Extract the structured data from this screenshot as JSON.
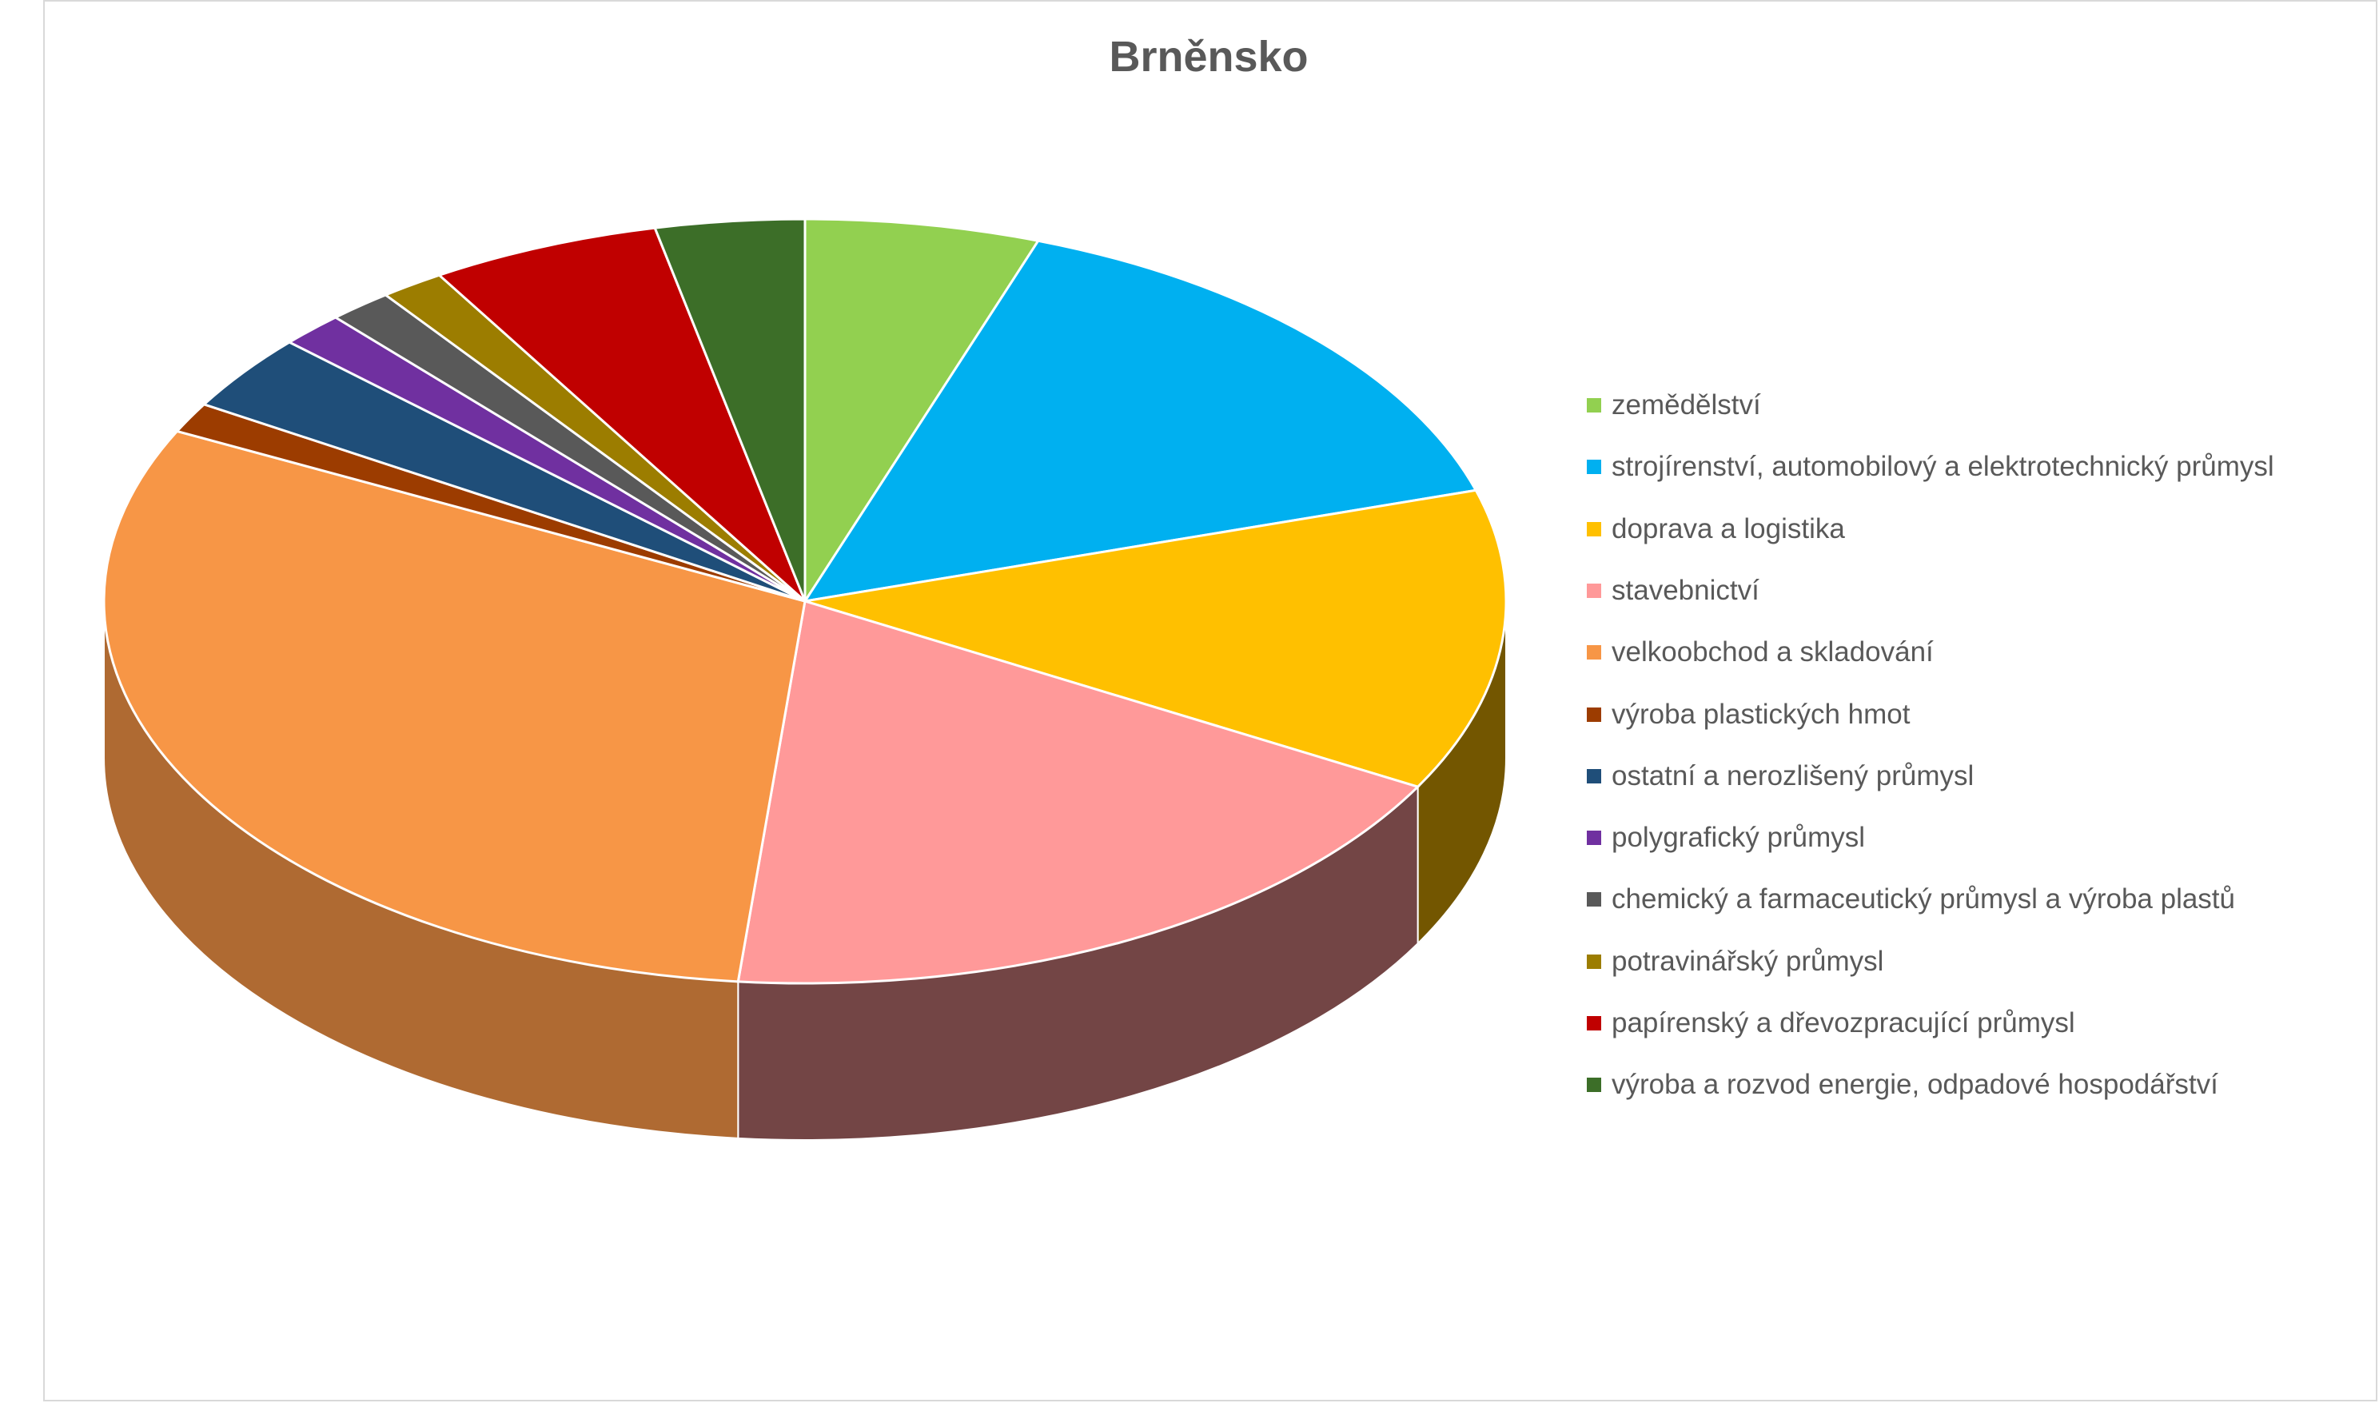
{
  "chart_data": {
    "type": "pie",
    "title": "Brněnsko",
    "legend_position": "right",
    "slices": [
      {
        "label": "zemědělství",
        "value": 5.5,
        "color": "#92d050"
      },
      {
        "label": "strojírenství, automobilový a elektrotechnický průmysl",
        "value": 15.2,
        "color": "#00b0f0"
      },
      {
        "label": "doprava a logistika",
        "value": 13.0,
        "color": "#ffc000"
      },
      {
        "label": "stavebnictví",
        "value": 18.8,
        "color": "#ff9999"
      },
      {
        "label": "velkoobchod a skladování",
        "value": 31.4,
        "color": "#f79646"
      },
      {
        "label": "výroba plastických hmot",
        "value": 1.3,
        "color": "#9c3c00"
      },
      {
        "label": "ostatní a nerozlišený průmysl",
        "value": 3.3,
        "color": "#1f4e79"
      },
      {
        "label": "polygrafický průmysl",
        "value": 1.5,
        "color": "#7030a0"
      },
      {
        "label": "chemický a farmaceutický průmysl a výroba plastů",
        "value": 1.5,
        "color": "#595959"
      },
      {
        "label": "potravinářský průmysl",
        "value": 1.5,
        "color": "#9c7d00"
      },
      {
        "label": "papírenský a dřevozpracující průmysl",
        "value": 5.4,
        "color": "#c00000"
      },
      {
        "label": "výroba a rozvod energie, odpadové hospodářství",
        "value": 3.5,
        "color": "#3c6e28"
      }
    ]
  }
}
